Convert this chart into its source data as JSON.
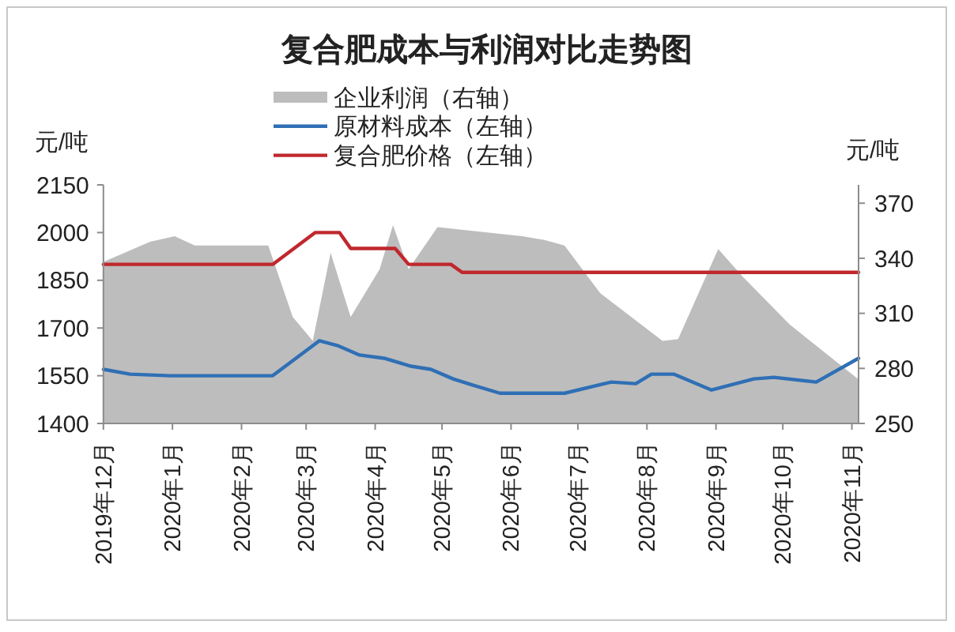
{
  "chart_data": {
    "type": "line",
    "title": "复合肥成本与利润对比走势图",
    "ylabel": "元/吨",
    "y2label": "元/吨",
    "legend": "top",
    "xlim": [
      "2019-12-01",
      "2020-11-04"
    ],
    "xticks": [
      {
        "value": "2019-12-01",
        "label": "2019年12月"
      },
      {
        "value": "2020-01-01",
        "label": "2020年1月"
      },
      {
        "value": "2020-02-01",
        "label": "2020年2月"
      },
      {
        "value": "2020-03-01",
        "label": "2020年3月"
      },
      {
        "value": "2020-04-01",
        "label": "2020年4月"
      },
      {
        "value": "2020-05-01",
        "label": "2020年5月"
      },
      {
        "value": "2020-06-01",
        "label": "2020年6月"
      },
      {
        "value": "2020-07-01",
        "label": "2020年7月"
      },
      {
        "value": "2020-08-01",
        "label": "2020年8月"
      },
      {
        "value": "2020-09-01",
        "label": "2020年9月"
      },
      {
        "value": "2020-10-01",
        "label": "2020年10月"
      },
      {
        "value": "2020-11-01",
        "label": "2020年11月"
      }
    ],
    "ylim": [
      1400,
      2150
    ],
    "yticks": [
      1400,
      1550,
      1700,
      1850,
      2000,
      2150
    ],
    "y2lim": [
      250,
      380
    ],
    "y2ticks": [
      250,
      280,
      310,
      340,
      370
    ],
    "series": [
      {
        "name": "企业利润（右轴）",
        "type": "area",
        "axis": "y2",
        "color": "#bdbdbd",
        "x": [
          "2019-12-01",
          "2019-12-22",
          "2020-01-02",
          "2020-01-11",
          "2020-02-13",
          "2020-02-24",
          "2020-03-04",
          "2020-03-12",
          "2020-03-21",
          "2020-04-03",
          "2020-04-09",
          "2020-04-16",
          "2020-04-29",
          "2020-06-06",
          "2020-06-16",
          "2020-06-25",
          "2020-07-11",
          "2020-08-08",
          "2020-08-15",
          "2020-09-02",
          "2020-09-13",
          "2020-10-04",
          "2020-11-04"
        ],
        "values": [
          338,
          349,
          352,
          347,
          347,
          308,
          295,
          343,
          308,
          334,
          358,
          334,
          357,
          352,
          350,
          347,
          321,
          295,
          296,
          345,
          330,
          304,
          274
        ]
      },
      {
        "name": "原材料成本（左轴）",
        "color": "#2f6fb5",
        "x": [
          "2019-12-01",
          "2019-12-13",
          "2019-12-31",
          "2020-02-15",
          "2020-03-07",
          "2020-03-15",
          "2020-03-25",
          "2020-04-05",
          "2020-04-17",
          "2020-04-26",
          "2020-05-06",
          "2020-05-15",
          "2020-05-27",
          "2020-06-25",
          "2020-07-16",
          "2020-07-27",
          "2020-08-03",
          "2020-08-13",
          "2020-08-30",
          "2020-09-18",
          "2020-09-27",
          "2020-10-16",
          "2020-11-04"
        ],
        "values": [
          1570,
          1555,
          1550,
          1550,
          1660,
          1645,
          1615,
          1605,
          1580,
          1570,
          1540,
          1520,
          1495,
          1495,
          1530,
          1525,
          1555,
          1555,
          1505,
          1540,
          1545,
          1530,
          1605
        ]
      },
      {
        "name": "复合肥价格（左轴）",
        "color": "#c0282d",
        "x": [
          "2019-12-01",
          "2020-02-15",
          "2020-03-05",
          "2020-03-16",
          "2020-03-21",
          "2020-04-10",
          "2020-04-16",
          "2020-05-05",
          "2020-05-10",
          "2020-11-04"
        ],
        "values": [
          1900,
          1900,
          2000,
          2000,
          1950,
          1950,
          1900,
          1900,
          1875,
          1875
        ]
      }
    ]
  }
}
